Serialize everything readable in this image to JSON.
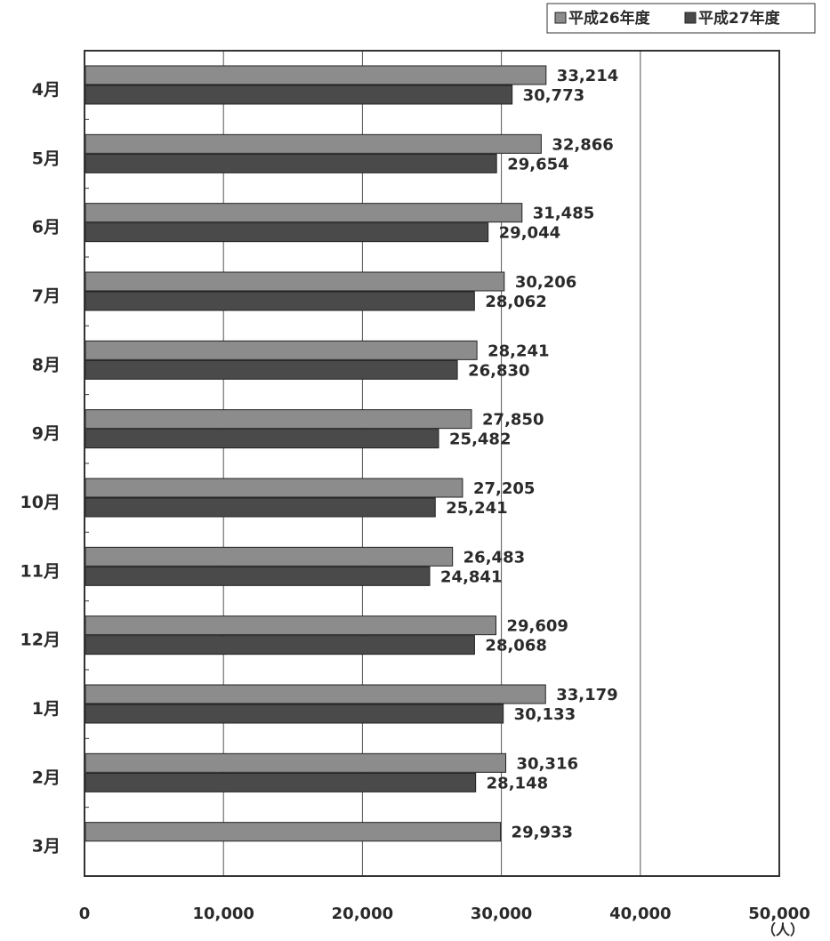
{
  "chart_data": {
    "type": "bar",
    "orientation": "horizontal",
    "categories": [
      "4月",
      "5月",
      "6月",
      "7月",
      "8月",
      "9月",
      "10月",
      "11月",
      "12月",
      "1月",
      "2月",
      "3月"
    ],
    "series": [
      {
        "name": "平成26年度",
        "color": "#8c8c8c",
        "values": [
          33214,
          32866,
          31485,
          30206,
          28241,
          27850,
          27205,
          26483,
          29609,
          33179,
          30316,
          29933
        ],
        "labels": [
          "33,214",
          "32,866",
          "31,485",
          "30,206",
          "28,241",
          "27,850",
          "27,205",
          "26,483",
          "29,609",
          "33,179",
          "30,316",
          "29,933"
        ]
      },
      {
        "name": "平成27年度",
        "color": "#4a4a4a",
        "values": [
          30773,
          29654,
          29044,
          28062,
          26830,
          25482,
          25241,
          24841,
          28068,
          30133,
          28148,
          null
        ],
        "labels": [
          "30,773",
          "29,654",
          "29,044",
          "28,062",
          "26,830",
          "25,482",
          "25,241",
          "24,841",
          "28,068",
          "30,133",
          "28,148",
          ""
        ]
      }
    ],
    "xlim": [
      0,
      50000
    ],
    "x_ticks": [
      0,
      10000,
      20000,
      30000,
      40000,
      50000
    ],
    "x_tick_labels": [
      "0",
      "10,000",
      "20,000",
      "30,000",
      "40,000",
      "50,000"
    ],
    "x_unit": "（人）",
    "grid": "vertical",
    "legend": "top-right",
    "legend_marker": "■"
  }
}
